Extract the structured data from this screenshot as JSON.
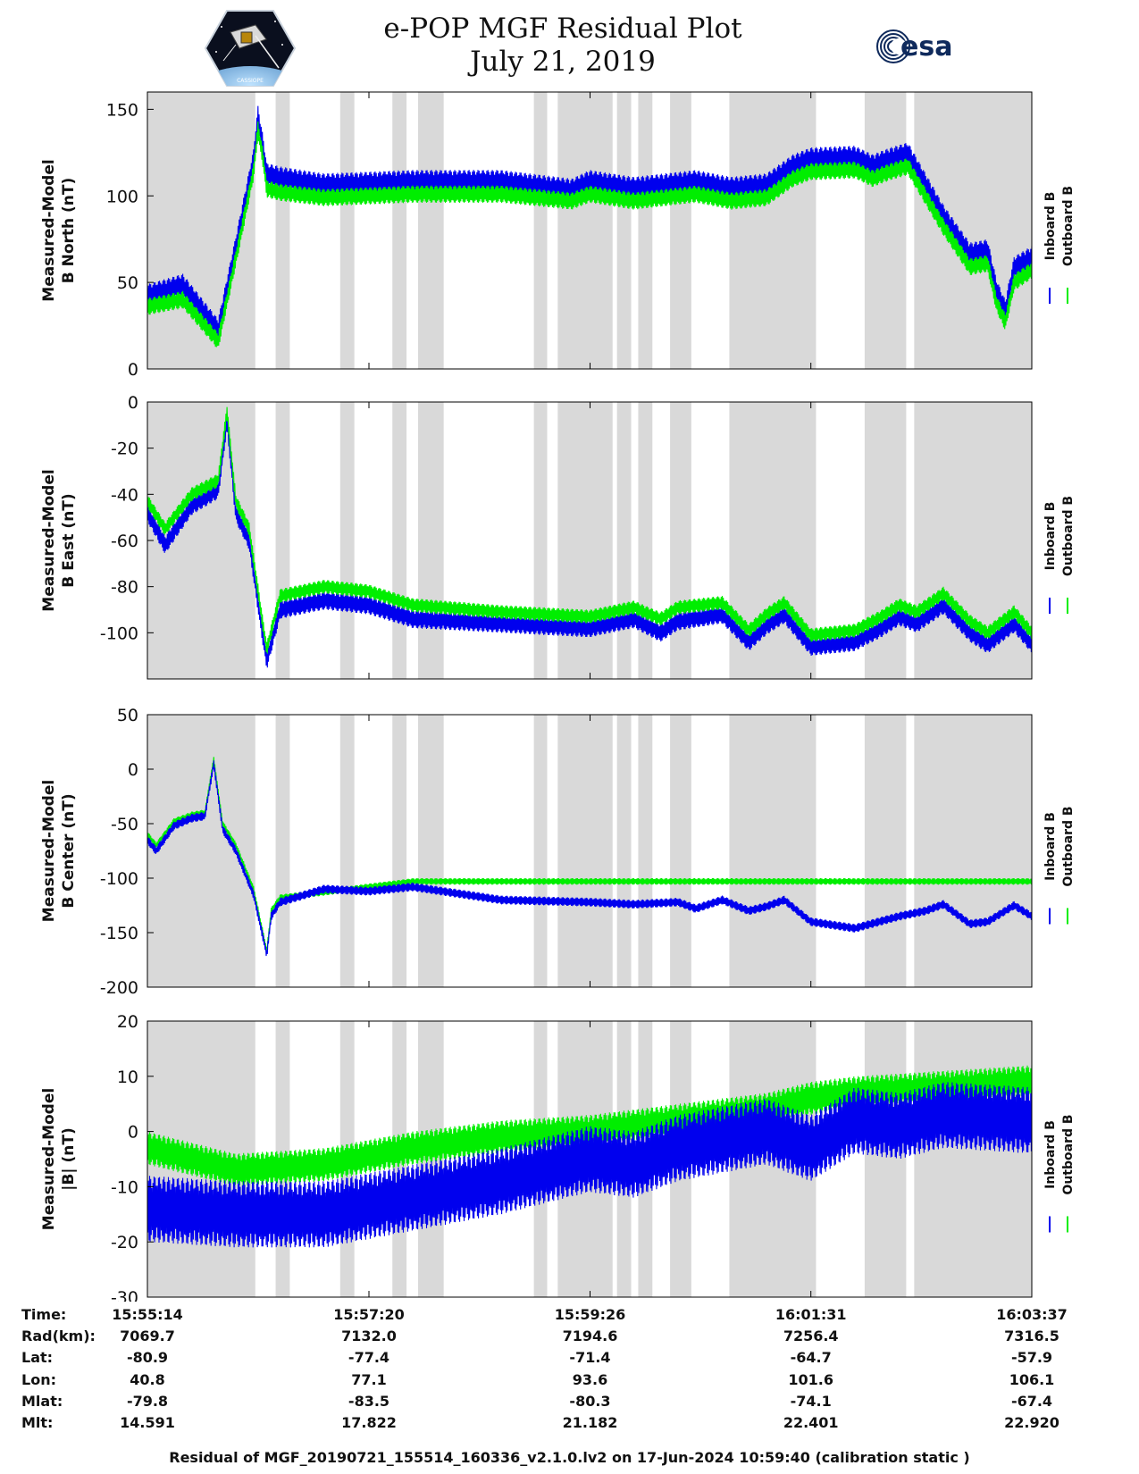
{
  "title": {
    "line1": "e-POP MGF Residual Plot",
    "line2": "July 21, 2019"
  },
  "logos": {
    "left": {
      "name": "cassiope-mission-logo",
      "caption": "CASSIOPE"
    },
    "right": {
      "name": "esa-logo",
      "text": "esa"
    }
  },
  "colors": {
    "inboard": "#0000ee",
    "outboard": "#00ee00",
    "shading": "#d9d9d9",
    "axis": "#000000"
  },
  "chart_data": [
    {
      "type": "line",
      "ylabel": [
        "Measured-Model",
        "B North (nT)"
      ],
      "ylim": [
        0,
        160
      ],
      "yticks": [
        0,
        50,
        100,
        150
      ],
      "legend": {
        "labels": [
          "Inboard B",
          "Outboard B"
        ],
        "placement": "right"
      },
      "series": [
        {
          "name": "Inboard B",
          "color": "#0000ee",
          "x": [
            0,
            0.04,
            0.08,
            0.1,
            0.12,
            0.125,
            0.13,
            0.135,
            0.15,
            0.2,
            0.3,
            0.4,
            0.48,
            0.5,
            0.55,
            0.62,
            0.66,
            0.7,
            0.73,
            0.75,
            0.8,
            0.82,
            0.84,
            0.86,
            0.9,
            0.93,
            0.95,
            0.96,
            0.97,
            0.98,
            1.0
          ],
          "y": [
            42,
            48,
            22,
            70,
            120,
            145,
            130,
            112,
            110,
            106,
            108,
            108,
            103,
            108,
            104,
            108,
            104,
            106,
            117,
            121,
            122,
            117,
            121,
            124,
            88,
            66,
            68,
            45,
            33,
            58,
            64
          ],
          "amp": 7
        },
        {
          "name": "Outboard B",
          "color": "#00ee00",
          "x": [
            0,
            0.04,
            0.08,
            0.1,
            0.12,
            0.125,
            0.13,
            0.135,
            0.15,
            0.2,
            0.3,
            0.4,
            0.48,
            0.5,
            0.55,
            0.62,
            0.66,
            0.7,
            0.73,
            0.75,
            0.8,
            0.82,
            0.84,
            0.86,
            0.9,
            0.93,
            0.95,
            0.96,
            0.97,
            0.98,
            1.0
          ],
          "y": [
            36,
            40,
            16,
            64,
            114,
            138,
            124,
            104,
            102,
            99,
            101,
            101,
            97,
            101,
            97,
            101,
            97,
            99,
            110,
            114,
            115,
            110,
            114,
            117,
            82,
            59,
            61,
            38,
            27,
            50,
            57
          ],
          "amp": 5
        }
      ]
    },
    {
      "type": "line",
      "ylabel": [
        "Measured-Model",
        "B East (nT)"
      ],
      "ylim": [
        -120,
        0
      ],
      "yticks": [
        0,
        -20,
        -40,
        -60,
        -80,
        -100
      ],
      "legend": {
        "labels": [
          "Inboard B",
          "Outboard B"
        ],
        "placement": "right"
      },
      "series": [
        {
          "name": "Inboard B",
          "color": "#0000ee",
          "x": [
            0,
            0.02,
            0.05,
            0.08,
            0.09,
            0.1,
            0.115,
            0.13,
            0.135,
            0.15,
            0.2,
            0.25,
            0.3,
            0.4,
            0.5,
            0.55,
            0.58,
            0.6,
            0.65,
            0.68,
            0.7,
            0.72,
            0.75,
            0.8,
            0.83,
            0.85,
            0.87,
            0.9,
            0.93,
            0.95,
            0.98,
            1.0
          ],
          "y": [
            -48,
            -62,
            -45,
            -38,
            -8,
            -48,
            -60,
            -100,
            -112,
            -90,
            -86,
            -88,
            -94,
            -96,
            -98,
            -94,
            -100,
            -95,
            -92,
            -104,
            -97,
            -92,
            -106,
            -104,
            -98,
            -93,
            -96,
            -88,
            -100,
            -105,
            -96,
            -105
          ],
          "amp": 4
        },
        {
          "name": "Outboard B",
          "color": "#00ee00",
          "x": [
            0,
            0.02,
            0.05,
            0.08,
            0.09,
            0.1,
            0.115,
            0.13,
            0.135,
            0.15,
            0.2,
            0.25,
            0.3,
            0.4,
            0.5,
            0.55,
            0.58,
            0.6,
            0.65,
            0.68,
            0.7,
            0.72,
            0.75,
            0.8,
            0.83,
            0.85,
            0.87,
            0.9,
            0.93,
            0.95,
            0.98,
            1.0
          ],
          "y": [
            -43,
            -55,
            -40,
            -34,
            -4,
            -43,
            -55,
            -95,
            -107,
            -84,
            -80,
            -82,
            -88,
            -91,
            -93,
            -89,
            -94,
            -89,
            -87,
            -99,
            -92,
            -87,
            -101,
            -99,
            -93,
            -88,
            -91,
            -83,
            -95,
            -100,
            -91,
            -100
          ],
          "amp": 3
        }
      ]
    },
    {
      "type": "line",
      "ylabel": [
        "Measured-Model",
        "B Center (nT)"
      ],
      "ylim": [
        -200,
        50
      ],
      "yticks": [
        50,
        0,
        -50,
        -100,
        -150,
        -200
      ],
      "legend": {
        "labels": [
          "Inboard B",
          "Outboard B"
        ],
        "placement": "right"
      },
      "series": [
        {
          "name": "Outboard B",
          "color": "#00ee00",
          "x": [
            0,
            0.01,
            0.03,
            0.05,
            0.065,
            0.075,
            0.085,
            0.1,
            0.12,
            0.135,
            0.14,
            0.15,
            0.3
          ],
          "y": [
            -60,
            -70,
            -48,
            -42,
            -40,
            9,
            -50,
            -70,
            -110,
            -167,
            -130,
            -118,
            -103
          ],
          "amp": 3
        },
        {
          "name": "Inboard B",
          "color": "#0000ee",
          "x": [
            0,
            0.01,
            0.03,
            0.05,
            0.065,
            0.075,
            0.085,
            0.1,
            0.12,
            0.135,
            0.14,
            0.15,
            0.2,
            0.25,
            0.3,
            0.4,
            0.5,
            0.55,
            0.6,
            0.62,
            0.65,
            0.68,
            0.7,
            0.72,
            0.75,
            0.8,
            0.85,
            0.88,
            0.9,
            0.93,
            0.95,
            0.98,
            1.0
          ],
          "y": [
            -65,
            -75,
            -52,
            -45,
            -43,
            5,
            -55,
            -75,
            -115,
            -170,
            -135,
            -122,
            -110,
            -112,
            -108,
            -120,
            -122,
            -124,
            -122,
            -128,
            -120,
            -130,
            -126,
            -120,
            -140,
            -146,
            -135,
            -130,
            -124,
            -142,
            -140,
            -125,
            -135
          ],
          "amp": 4
        }
      ]
    },
    {
      "type": "line",
      "ylabel": [
        "Measured-Model",
        "|B| (nT)"
      ],
      "ylim": [
        -30,
        20
      ],
      "yticks": [
        20,
        10,
        0,
        -10,
        -20,
        -30
      ],
      "legend": {
        "labels": [
          "Inboard B",
          "Outboard B"
        ],
        "placement": "right"
      },
      "series": [
        {
          "name": "Outboard B",
          "color": "#00ee00",
          "x": [
            0,
            0.1,
            0.2,
            0.3,
            0.4,
            0.5,
            0.6,
            0.7,
            0.75,
            0.8,
            0.9,
            1.0
          ],
          "y": [
            -3,
            -7,
            -6,
            -3,
            -1,
            0,
            2,
            4,
            6,
            7,
            8,
            9
          ],
          "amp": 3
        },
        {
          "name": "Inboard B",
          "color": "#0000ee",
          "x": [
            0,
            0.1,
            0.2,
            0.3,
            0.4,
            0.5,
            0.55,
            0.6,
            0.7,
            0.75,
            0.8,
            0.85,
            0.9,
            1.0
          ],
          "y": [
            -14,
            -15,
            -15,
            -12,
            -9,
            -5,
            -6,
            -3,
            0,
            -3,
            2,
            1,
            3,
            2
          ],
          "amp": 6
        }
      ]
    }
  ],
  "shaded_intervals": [
    [
      0,
      0.122
    ],
    [
      0.145,
      0.161
    ],
    [
      0.218,
      0.234
    ],
    [
      0.277,
      0.293
    ],
    [
      0.306,
      0.335
    ],
    [
      0.437,
      0.452
    ],
    [
      0.464,
      0.526
    ],
    [
      0.531,
      0.547
    ],
    [
      0.555,
      0.571
    ],
    [
      0.591,
      0.615
    ],
    [
      0.658,
      0.756
    ],
    [
      0.811,
      0.858
    ],
    [
      0.867,
      1.0
    ]
  ],
  "time_ticks": [
    0,
    0.2505,
    0.5005,
    0.7502,
    1.0
  ],
  "ephemeris": {
    "headers": [
      "Time:",
      "Rad(km):",
      "Lat:",
      "Lon:",
      "Mlat:",
      "Mlt:"
    ],
    "columns": [
      [
        "15:55:14",
        "7069.7",
        "-80.9",
        "40.8",
        "-79.8",
        "14.591"
      ],
      [
        "15:57:20",
        "7132.0",
        "-77.4",
        "77.1",
        "-83.5",
        "17.822"
      ],
      [
        "15:59:26",
        "7194.6",
        "-71.4",
        "93.6",
        "-80.3",
        "21.182"
      ],
      [
        "16:01:31",
        "7256.4",
        "-64.7",
        "101.6",
        "-74.1",
        "22.401"
      ],
      [
        "16:03:37",
        "7316.5",
        "-57.9",
        "106.1",
        "-67.4",
        "22.920"
      ]
    ]
  },
  "footer": "Residual of MGF_20190721_155514_160336_v2.1.0.lv2 on 17-Jun-2024 10:59:40 (calibration static )"
}
